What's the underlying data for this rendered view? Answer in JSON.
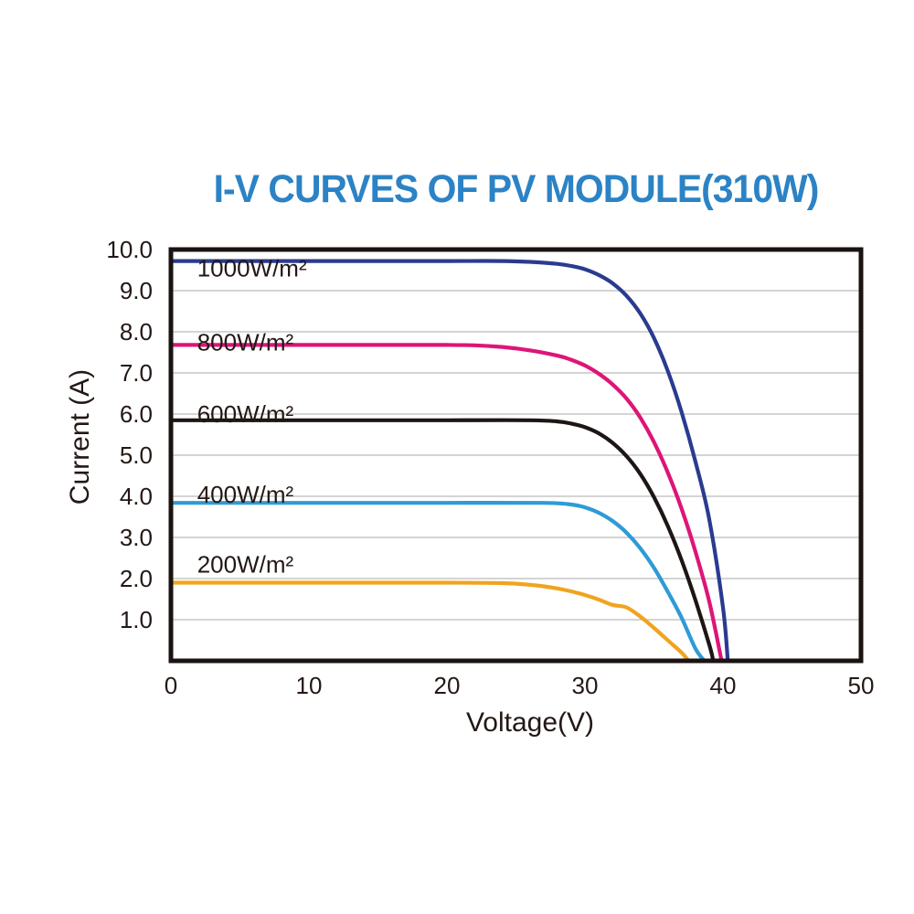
{
  "title": {
    "text": "I-V CURVES OF PV MODULE(310W)",
    "color": "#2B83C5"
  },
  "chart_data": {
    "type": "line",
    "title": "I-V CURVES OF PV MODULE(310W)",
    "xlabel": "Voltage(V)",
    "ylabel": "Current (A)",
    "xlim": [
      0,
      50
    ],
    "ylim": [
      0,
      10
    ],
    "x_ticks": [
      0,
      10,
      20,
      30,
      40,
      50
    ],
    "y_ticks": [
      1,
      2,
      3,
      4,
      5,
      6,
      7,
      8,
      9,
      10
    ],
    "y_tick_labels": [
      "1.0",
      "2.0",
      "3.0",
      "4.0",
      "5.0",
      "6.0",
      "7.0",
      "8.0",
      "9.0",
      "10.0"
    ],
    "grid": "horizontal-only",
    "grid_color": "#C6C6C6",
    "axis_color": "#1A1311",
    "text_color": "#231815",
    "legend_position": "inline-curve-labels",
    "series": [
      {
        "name": "1000W/m²",
        "color": "#2A3B8F",
        "isc_amps": 9.72,
        "voc_volts": 40.35,
        "label_anchor": [
          1.9,
          9.35
        ],
        "points": [
          [
            0,
            9.72
          ],
          [
            5,
            9.72
          ],
          [
            10,
            9.72
          ],
          [
            15,
            9.72
          ],
          [
            20,
            9.72
          ],
          [
            24,
            9.72
          ],
          [
            26,
            9.7
          ],
          [
            28,
            9.65
          ],
          [
            29,
            9.6
          ],
          [
            30,
            9.52
          ],
          [
            31,
            9.38
          ],
          [
            32,
            9.18
          ],
          [
            33,
            8.88
          ],
          [
            34,
            8.45
          ],
          [
            35,
            7.85
          ],
          [
            36,
            7.05
          ],
          [
            37,
            6.05
          ],
          [
            38,
            4.85
          ],
          [
            39,
            3.45
          ],
          [
            40,
            1.3
          ],
          [
            40.35,
            0
          ]
        ]
      },
      {
        "name": "800W/m²",
        "color": "#DE1577",
        "isc_amps": 7.68,
        "voc_volts": 39.9,
        "label_anchor": [
          1.9,
          7.55
        ],
        "points": [
          [
            0,
            7.68
          ],
          [
            5,
            7.68
          ],
          [
            10,
            7.68
          ],
          [
            15,
            7.68
          ],
          [
            20,
            7.68
          ],
          [
            22,
            7.67
          ],
          [
            24,
            7.63
          ],
          [
            26,
            7.55
          ],
          [
            28,
            7.42
          ],
          [
            29,
            7.32
          ],
          [
            30,
            7.18
          ],
          [
            31,
            6.98
          ],
          [
            32,
            6.72
          ],
          [
            33,
            6.38
          ],
          [
            34,
            5.92
          ],
          [
            35,
            5.32
          ],
          [
            36,
            4.58
          ],
          [
            37,
            3.7
          ],
          [
            38,
            2.66
          ],
          [
            39,
            1.45
          ],
          [
            39.9,
            0
          ]
        ]
      },
      {
        "name": "600W/m²",
        "color": "#1D1614",
        "isc_amps": 5.85,
        "voc_volts": 39.3,
        "label_anchor": [
          1.9,
          5.8
        ],
        "points": [
          [
            0,
            5.85
          ],
          [
            5,
            5.85
          ],
          [
            10,
            5.85
          ],
          [
            15,
            5.85
          ],
          [
            20,
            5.85
          ],
          [
            26,
            5.85
          ],
          [
            28,
            5.82
          ],
          [
            29,
            5.77
          ],
          [
            30,
            5.68
          ],
          [
            31,
            5.53
          ],
          [
            32,
            5.3
          ],
          [
            33,
            4.98
          ],
          [
            34,
            4.55
          ],
          [
            35,
            3.98
          ],
          [
            36,
            3.28
          ],
          [
            37,
            2.45
          ],
          [
            38,
            1.48
          ],
          [
            39,
            0.4
          ],
          [
            39.3,
            0
          ]
        ]
      },
      {
        "name": "400W/m²",
        "color": "#2E9BD6",
        "isc_amps": 3.84,
        "voc_volts": 38.65,
        "label_anchor": [
          1.9,
          3.85
        ],
        "points": [
          [
            0,
            3.84
          ],
          [
            5,
            3.84
          ],
          [
            10,
            3.84
          ],
          [
            15,
            3.84
          ],
          [
            20,
            3.84
          ],
          [
            27,
            3.84
          ],
          [
            29,
            3.8
          ],
          [
            30,
            3.73
          ],
          [
            31,
            3.6
          ],
          [
            32,
            3.4
          ],
          [
            33,
            3.12
          ],
          [
            34,
            2.74
          ],
          [
            35,
            2.26
          ],
          [
            36,
            1.68
          ],
          [
            37,
            1.05
          ],
          [
            38,
            0.3
          ],
          [
            38.65,
            0
          ]
        ]
      },
      {
        "name": "200W/m²",
        "color": "#F0A41E",
        "isc_amps": 1.9,
        "voc_volts": 37.5,
        "label_anchor": [
          1.9,
          2.15
        ],
        "points": [
          [
            0,
            1.9
          ],
          [
            5,
            1.9
          ],
          [
            10,
            1.9
          ],
          [
            15,
            1.9
          ],
          [
            20,
            1.9
          ],
          [
            24,
            1.89
          ],
          [
            26,
            1.85
          ],
          [
            27,
            1.81
          ],
          [
            28,
            1.76
          ],
          [
            29,
            1.69
          ],
          [
            30,
            1.6
          ],
          [
            31,
            1.49
          ],
          [
            32,
            1.36
          ],
          [
            33,
            1.3
          ],
          [
            34,
            1.08
          ],
          [
            35,
            0.8
          ],
          [
            36,
            0.5
          ],
          [
            37,
            0.2
          ],
          [
            37.5,
            0
          ]
        ]
      }
    ]
  }
}
